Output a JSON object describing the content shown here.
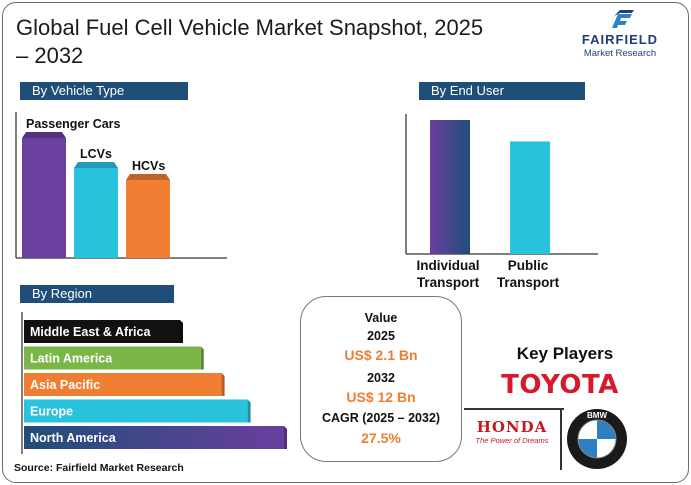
{
  "title": "Global Fuel Cell Vehicle Market Snapshot, 2025 – 2032",
  "logo": {
    "word": "FAIRFIELD",
    "sub": "Market Research"
  },
  "colors": {
    "navy": "#1f4e79",
    "purple": "#6a3f9e",
    "cyan": "#29c3dd",
    "orange": "#ef7d32",
    "green": "#7ab648",
    "black": "#111111",
    "toyota_red": "#d8192a"
  },
  "chart_data": [
    {
      "type": "bar",
      "title": "By Vehicle Type",
      "categories": [
        "Passenger Cars",
        "LCVs",
        "HCVs"
      ],
      "values": [
        100,
        75,
        65
      ],
      "ylim": [
        0,
        100
      ],
      "colors": [
        "#6a3f9e",
        "#29c3dd",
        "#ef7d32"
      ]
    },
    {
      "type": "bar",
      "title": "By End User",
      "categories": [
        "Individual Transport",
        "Public Transport"
      ],
      "category_lines": [
        [
          "Individual",
          "Transport"
        ],
        [
          "Public",
          "Transport"
        ]
      ],
      "values": [
        100,
        84
      ],
      "ylim": [
        0,
        100
      ],
      "colors": [
        "#6a3f9e",
        "#29c3dd"
      ]
    },
    {
      "type": "bar",
      "orientation": "horizontal",
      "title": "By Region",
      "categories": [
        "Middle East & Africa",
        "Latin America",
        "Asia Pacific",
        "Europe",
        "North America"
      ],
      "values": [
        60,
        68,
        76,
        86,
        100
      ],
      "xlim": [
        0,
        100
      ],
      "colors": [
        "#111111",
        "#7ab648",
        "#ef7d32",
        "#29c3dd",
        "#6a3f9e"
      ]
    }
  ],
  "value_box": {
    "value_label": "Value",
    "year_start": "2025",
    "value_start": "US$ 2.1 Bn",
    "year_end": "2032",
    "value_end": "US$ 12 Bn",
    "cagr_label": "CAGR (2025 – 2032)",
    "cagr_value": "27.5%"
  },
  "key_players": {
    "title": "Key Players",
    "toyota": "TOYOTA",
    "honda": "HONDA",
    "honda_tagline": "The Power of Dreams",
    "bmw": "BMW"
  },
  "source": "Source: Fairfield Market Research"
}
